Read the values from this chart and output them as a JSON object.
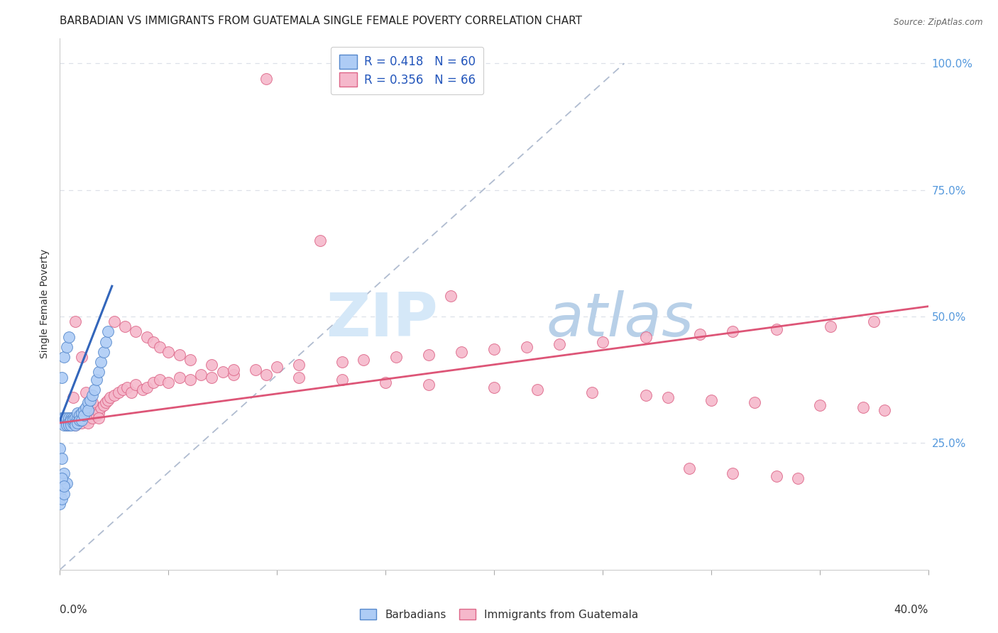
{
  "title": "BARBADIAN VS IMMIGRANTS FROM GUATEMALA SINGLE FEMALE POVERTY CORRELATION CHART",
  "source": "Source: ZipAtlas.com",
  "ylabel": "Single Female Poverty",
  "xlim": [
    0.0,
    0.4
  ],
  "ylim": [
    0.0,
    1.05
  ],
  "legend_r1": "R = 0.418",
  "legend_n1": "N = 60",
  "legend_r2": "R = 0.356",
  "legend_n2": "N = 66",
  "blue_color": "#aeccf5",
  "blue_edge_color": "#5588cc",
  "blue_line_color": "#3366bb",
  "pink_color": "#f5b8cb",
  "pink_edge_color": "#dd6688",
  "pink_line_color": "#dd5577",
  "dash_color": "#b0bcd0",
  "label1": "Barbadians",
  "label2": "Immigrants from Guatemala",
  "background_color": "#ffffff",
  "grid_color": "#dde0e8",
  "watermark_zip": "ZIP",
  "watermark_atlas": "atlas",
  "watermark_color": "#d0e4f5",
  "title_fontsize": 11,
  "axis_label_fontsize": 10,
  "tick_fontsize": 10,
  "legend_fontsize": 12,
  "blue_line_x0": 0.0,
  "blue_line_y0": 0.295,
  "blue_line_x1": 0.024,
  "blue_line_y1": 0.56,
  "pink_line_x0": 0.0,
  "pink_line_y0": 0.29,
  "pink_line_x1": 0.4,
  "pink_line_y1": 0.52,
  "dash_line_x0": 0.0,
  "dash_line_y0": 0.0,
  "dash_line_x1": 0.26,
  "dash_line_y1": 1.0,
  "blue_dots_x": [
    0.0,
    0.001,
    0.001,
    0.001,
    0.002,
    0.002,
    0.002,
    0.003,
    0.003,
    0.003,
    0.003,
    0.004,
    0.004,
    0.004,
    0.004,
    0.005,
    0.005,
    0.005,
    0.005,
    0.006,
    0.006,
    0.006,
    0.007,
    0.007,
    0.007,
    0.008,
    0.008,
    0.008,
    0.009,
    0.009,
    0.01,
    0.01,
    0.011,
    0.011,
    0.012,
    0.013,
    0.013,
    0.014,
    0.015,
    0.016,
    0.017,
    0.018,
    0.019,
    0.02,
    0.021,
    0.022,
    0.001,
    0.002,
    0.003,
    0.004,
    0.0,
    0.001,
    0.002,
    0.001,
    0.0,
    0.001,
    0.002,
    0.003,
    0.001,
    0.002
  ],
  "blue_dots_y": [
    0.295,
    0.295,
    0.3,
    0.29,
    0.295,
    0.3,
    0.285,
    0.295,
    0.29,
    0.3,
    0.285,
    0.295,
    0.3,
    0.29,
    0.285,
    0.3,
    0.29,
    0.295,
    0.285,
    0.3,
    0.29,
    0.295,
    0.3,
    0.29,
    0.285,
    0.3,
    0.31,
    0.29,
    0.305,
    0.295,
    0.31,
    0.295,
    0.315,
    0.305,
    0.32,
    0.33,
    0.315,
    0.335,
    0.345,
    0.355,
    0.375,
    0.39,
    0.41,
    0.43,
    0.45,
    0.47,
    0.38,
    0.42,
    0.44,
    0.46,
    0.24,
    0.22,
    0.19,
    0.16,
    0.13,
    0.14,
    0.15,
    0.17,
    0.18,
    0.165
  ],
  "pink_dots_x": [
    0.002,
    0.003,
    0.004,
    0.005,
    0.006,
    0.007,
    0.008,
    0.009,
    0.01,
    0.011,
    0.012,
    0.013,
    0.014,
    0.015,
    0.016,
    0.017,
    0.018,
    0.019,
    0.02,
    0.021,
    0.022,
    0.023,
    0.025,
    0.027,
    0.029,
    0.031,
    0.033,
    0.035,
    0.038,
    0.04,
    0.043,
    0.046,
    0.05,
    0.055,
    0.06,
    0.065,
    0.07,
    0.075,
    0.08,
    0.09,
    0.1,
    0.11,
    0.12,
    0.13,
    0.14,
    0.155,
    0.17,
    0.185,
    0.2,
    0.215,
    0.23,
    0.25,
    0.27,
    0.295,
    0.31,
    0.33,
    0.355,
    0.375,
    0.095,
    0.18,
    0.006,
    0.007,
    0.01,
    0.012,
    0.015,
    0.018
  ],
  "pink_dots_y": [
    0.29,
    0.285,
    0.295,
    0.3,
    0.29,
    0.285,
    0.295,
    0.3,
    0.29,
    0.3,
    0.295,
    0.29,
    0.31,
    0.3,
    0.315,
    0.305,
    0.31,
    0.32,
    0.325,
    0.33,
    0.335,
    0.34,
    0.345,
    0.35,
    0.355,
    0.36,
    0.35,
    0.365,
    0.355,
    0.36,
    0.37,
    0.375,
    0.37,
    0.38,
    0.375,
    0.385,
    0.38,
    0.39,
    0.385,
    0.395,
    0.4,
    0.405,
    0.65,
    0.41,
    0.415,
    0.42,
    0.425,
    0.43,
    0.435,
    0.44,
    0.445,
    0.45,
    0.46,
    0.465,
    0.47,
    0.475,
    0.48,
    0.49,
    0.97,
    0.54,
    0.34,
    0.49,
    0.42,
    0.35,
    0.33,
    0.3
  ],
  "pink_extra_x": [
    0.025,
    0.03,
    0.035,
    0.04,
    0.043,
    0.046,
    0.05,
    0.055,
    0.06,
    0.07,
    0.08,
    0.095,
    0.11,
    0.13,
    0.15,
    0.17,
    0.2,
    0.22,
    0.245,
    0.27,
    0.28,
    0.3,
    0.32,
    0.35,
    0.37,
    0.38,
    0.29,
    0.31,
    0.33,
    0.34
  ],
  "pink_extra_y": [
    0.49,
    0.48,
    0.47,
    0.46,
    0.45,
    0.44,
    0.43,
    0.425,
    0.415,
    0.405,
    0.395,
    0.385,
    0.38,
    0.375,
    0.37,
    0.365,
    0.36,
    0.355,
    0.35,
    0.345,
    0.34,
    0.335,
    0.33,
    0.325,
    0.32,
    0.315,
    0.2,
    0.19,
    0.185,
    0.18
  ]
}
